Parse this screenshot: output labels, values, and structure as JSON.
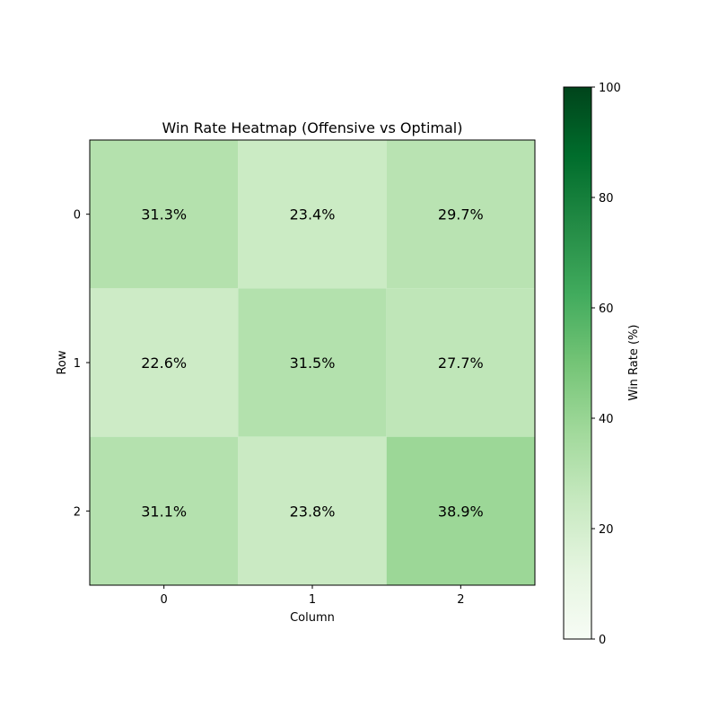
{
  "chart_data": {
    "type": "heatmap",
    "title": "Win Rate Heatmap (Offensive vs Optimal)",
    "xlabel": "Column",
    "ylabel": "Row",
    "x_ticks": [
      "0",
      "1",
      "2"
    ],
    "y_ticks": [
      "0",
      "1",
      "2"
    ],
    "values": [
      [
        31.3,
        23.4,
        29.7
      ],
      [
        22.6,
        31.5,
        27.7
      ],
      [
        31.1,
        23.8,
        38.9
      ]
    ],
    "cell_labels": [
      [
        "31.3%",
        "23.4%",
        "29.7%"
      ],
      [
        "22.6%",
        "31.5%",
        "27.7%"
      ],
      [
        "31.1%",
        "23.8%",
        "38.9%"
      ]
    ],
    "colorbar": {
      "label": "Win Rate (%)",
      "range": [
        0,
        100
      ],
      "ticks": [
        "0",
        "20",
        "40",
        "60",
        "80",
        "100"
      ],
      "colormap": "Greens"
    },
    "grid": false
  }
}
